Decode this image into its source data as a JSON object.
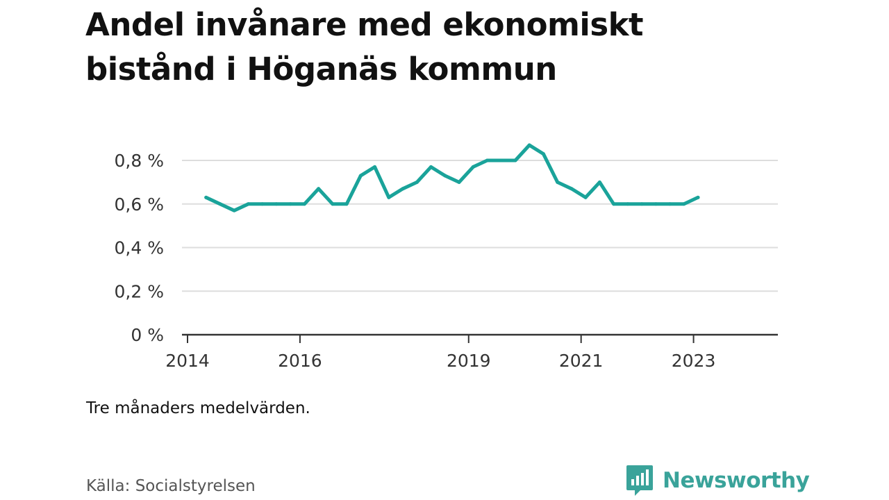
{
  "title_lines": [
    "Andel invånare med ekonomiskt",
    "bistånd i Höganäs kommun"
  ],
  "note": "Tre månaders medelvärden.",
  "source": "Källa: Socialstyrelsen",
  "brand": {
    "name": "Newsworthy",
    "icon": "newsworthy-logo-icon",
    "color": "#3aa39a"
  },
  "chart_data": {
    "type": "line",
    "color": "#1aa39a",
    "grid": true,
    "xlim": [
      2014.0,
      2024.5
    ],
    "ylim": [
      0,
      0.8
    ],
    "yticks": [
      0,
      0.2,
      0.4,
      0.6,
      0.8
    ],
    "ytick_labels": [
      "0 %",
      "0,2 %",
      "0,4 %",
      "0,6 %",
      "0,8 %"
    ],
    "xticks": [
      2014,
      2016,
      2019,
      2021,
      2023
    ],
    "xtick_labels": [
      "2014",
      "2016",
      "2019",
      "2021",
      "2023"
    ],
    "series": [
      {
        "x": [
          2014.33,
          2014.58,
          2014.83,
          2015.08,
          2015.33,
          2015.58,
          2015.83,
          2016.08,
          2016.33,
          2016.58,
          2016.83,
          2017.08,
          2017.33,
          2017.58,
          2017.83,
          2018.08,
          2018.33,
          2018.58,
          2018.83,
          2019.08,
          2019.33,
          2019.58,
          2019.83,
          2020.08,
          2020.33,
          2020.58,
          2020.83,
          2021.08,
          2021.33,
          2021.58,
          2021.83,
          2022.08,
          2022.33,
          2022.58,
          2022.83,
          2023.08
        ],
        "values": [
          0.63,
          0.6,
          0.57,
          0.6,
          0.6,
          0.6,
          0.6,
          0.6,
          0.67,
          0.6,
          0.6,
          0.73,
          0.77,
          0.63,
          0.67,
          0.7,
          0.77,
          0.73,
          0.7,
          0.77,
          0.8,
          0.8,
          0.8,
          0.87,
          0.83,
          0.7,
          0.67,
          0.63,
          0.7,
          0.6,
          0.6,
          0.6,
          0.6,
          0.6,
          0.6,
          0.63
        ]
      }
    ]
  }
}
